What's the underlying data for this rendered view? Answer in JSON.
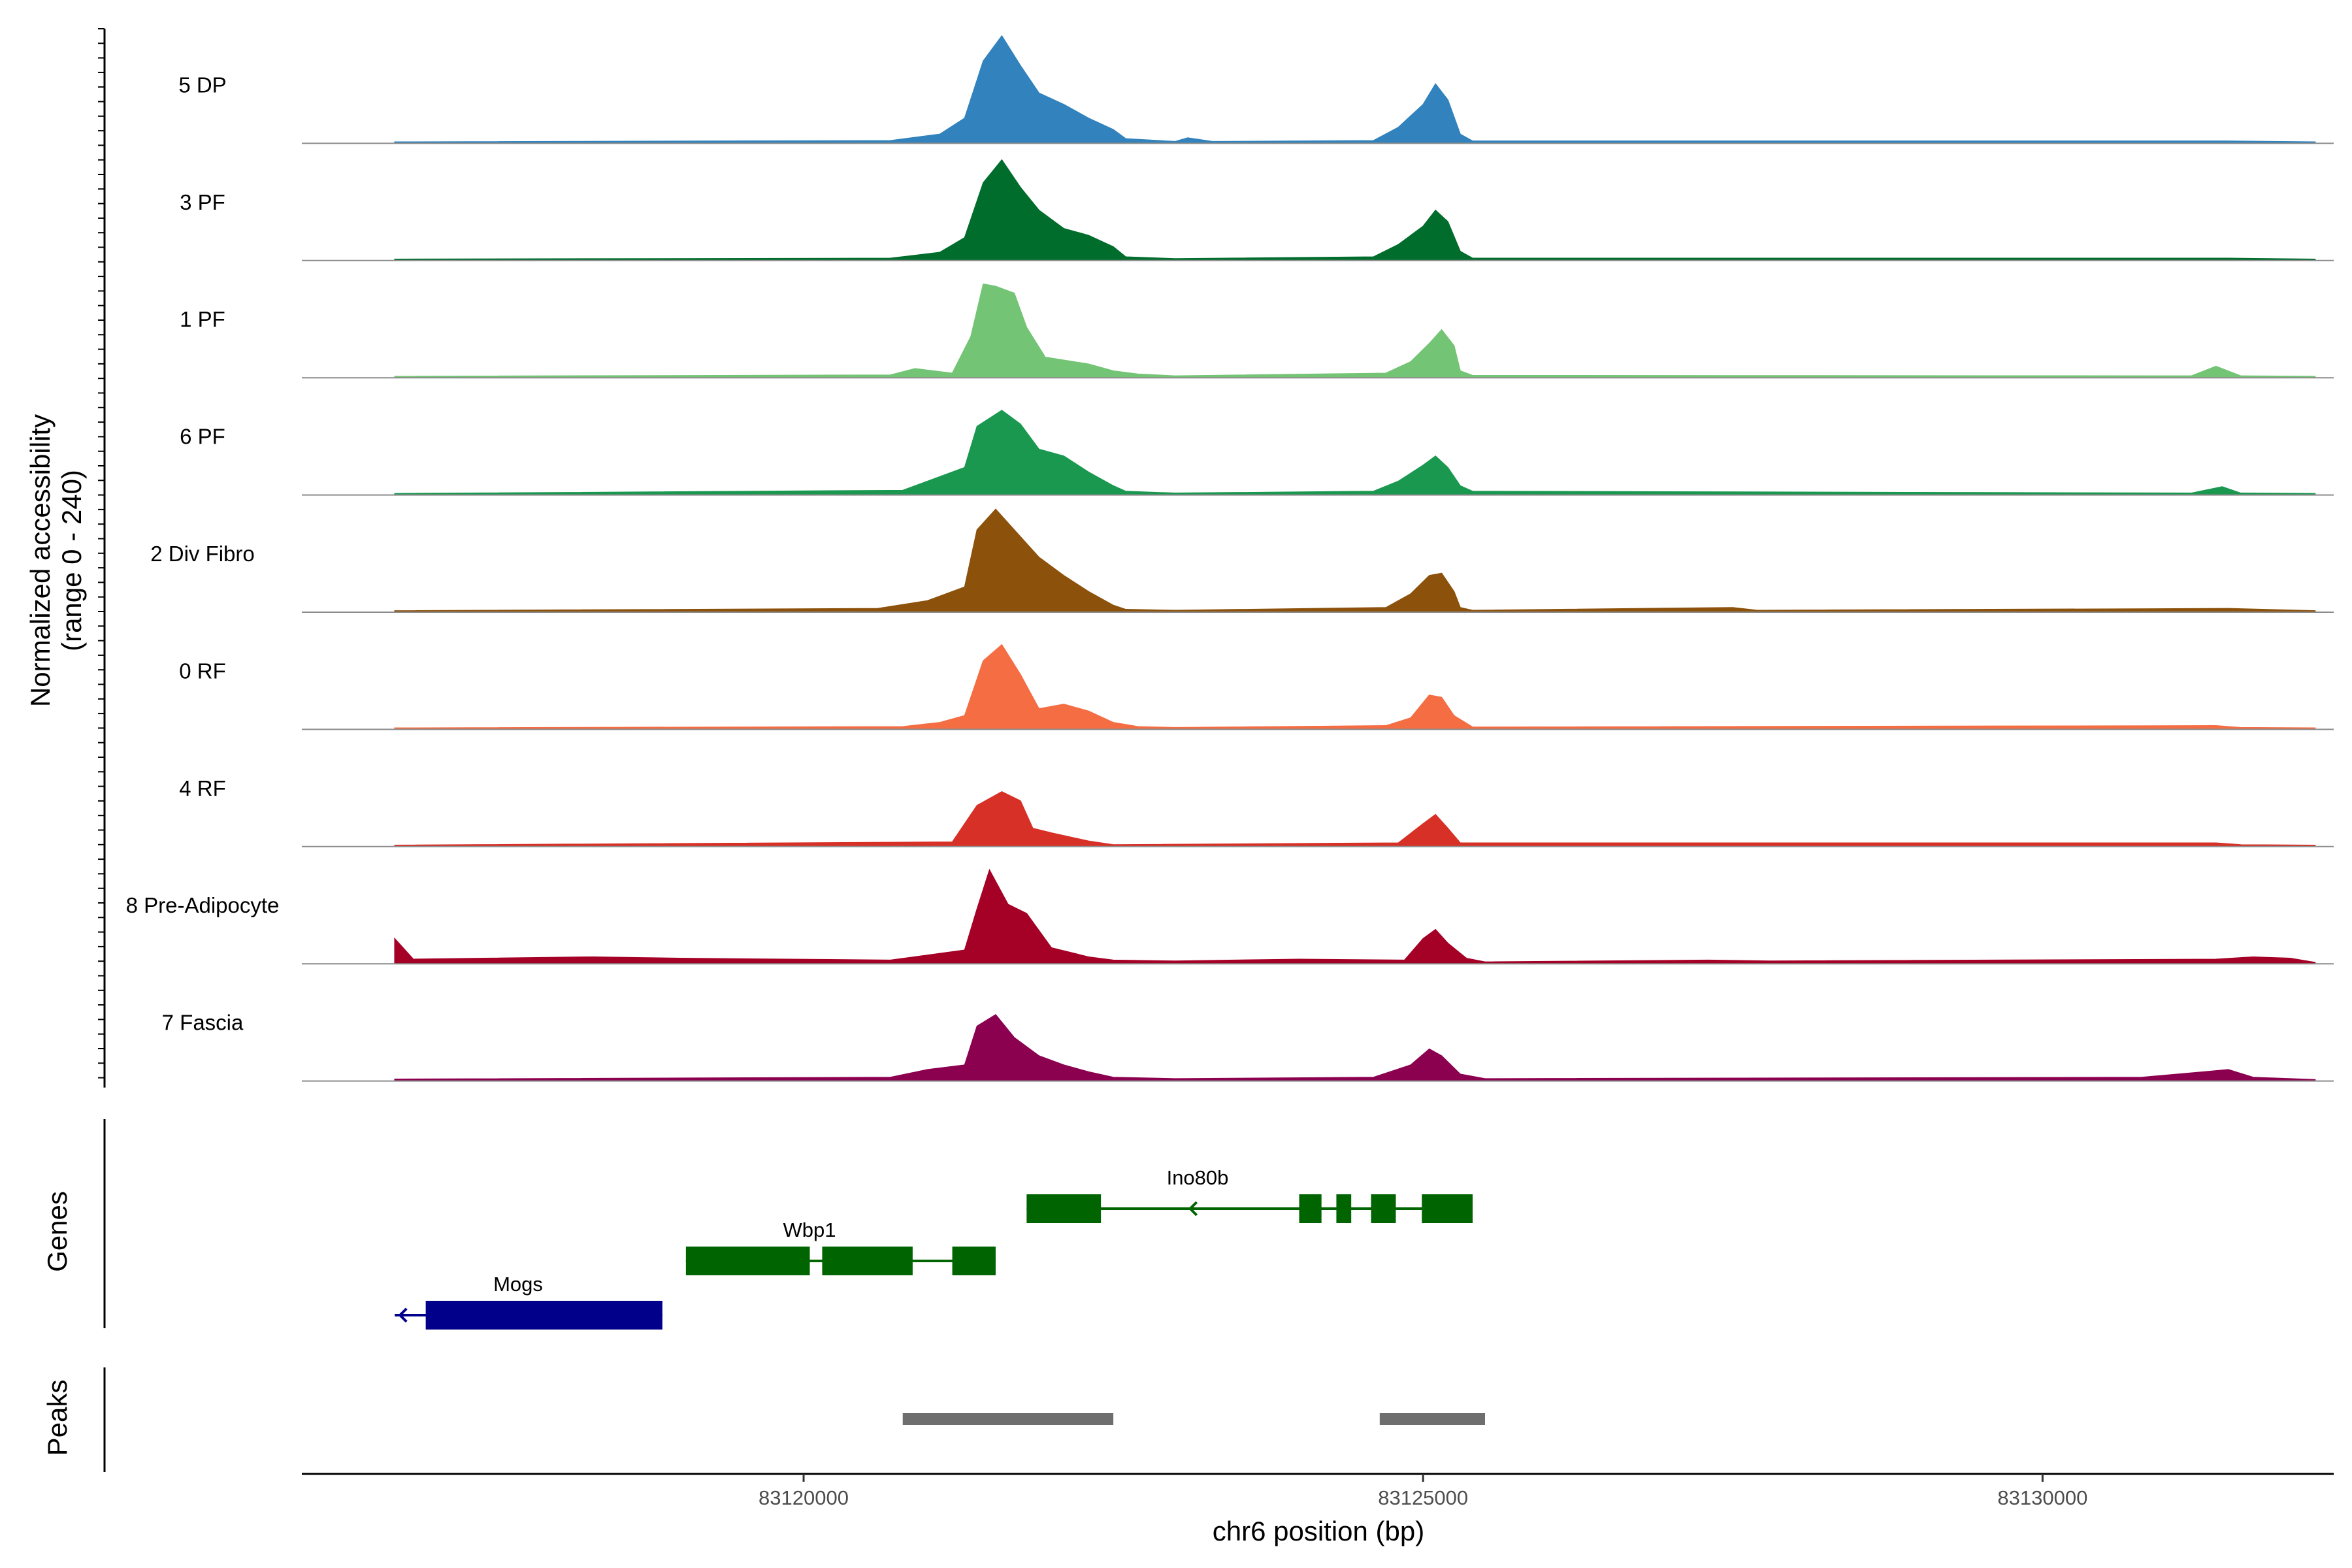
{
  "chart_data": {
    "type": "area",
    "title": "",
    "ylabel": "Normalized accessibility\n(range 0 - 240)",
    "xlabel": "chr6 position (bp)",
    "chromosome": "chr6",
    "xlim": [
      83115950,
      83132350
    ],
    "ylim": [
      0,
      240
    ],
    "x_ticks": [
      83120000,
      83125000,
      83130000
    ],
    "x_tick_labels": [
      "83120000",
      "83125000",
      "83130000"
    ],
    "tracks": [
      {
        "name": "5 DP",
        "color": "#3182bd",
        "profile": [
          [
            83116700,
            3
          ],
          [
            83120700,
            6
          ],
          [
            83121100,
            20
          ],
          [
            83121300,
            55
          ],
          [
            83121450,
            180
          ],
          [
            83121600,
            235
          ],
          [
            83121750,
            170
          ],
          [
            83121900,
            110
          ],
          [
            83122100,
            85
          ],
          [
            83122300,
            55
          ],
          [
            83122500,
            30
          ],
          [
            83122600,
            10
          ],
          [
            83123000,
            4
          ],
          [
            83123100,
            12
          ],
          [
            83123300,
            4
          ],
          [
            83124600,
            6
          ],
          [
            83124800,
            35
          ],
          [
            83125000,
            85
          ],
          [
            83125100,
            130
          ],
          [
            83125200,
            95
          ],
          [
            83125300,
            20
          ],
          [
            83125400,
            5
          ],
          [
            83131500,
            5
          ],
          [
            83132200,
            3
          ]
        ]
      },
      {
        "name": "3 PF",
        "color": "#006d2c",
        "profile": [
          [
            83116700,
            3
          ],
          [
            83120700,
            5
          ],
          [
            83121100,
            18
          ],
          [
            83121300,
            50
          ],
          [
            83121450,
            170
          ],
          [
            83121600,
            220
          ],
          [
            83121750,
            160
          ],
          [
            83121900,
            110
          ],
          [
            83122100,
            70
          ],
          [
            83122300,
            55
          ],
          [
            83122500,
            30
          ],
          [
            83122600,
            8
          ],
          [
            83123000,
            4
          ],
          [
            83124600,
            8
          ],
          [
            83124800,
            35
          ],
          [
            83125000,
            75
          ],
          [
            83125100,
            110
          ],
          [
            83125200,
            85
          ],
          [
            83125300,
            20
          ],
          [
            83125400,
            5
          ],
          [
            83131500,
            5
          ],
          [
            83132200,
            3
          ]
        ]
      },
      {
        "name": "1 PF",
        "color": "#74c476",
        "profile": [
          [
            83116700,
            3
          ],
          [
            83120700,
            6
          ],
          [
            83120900,
            20
          ],
          [
            83121200,
            10
          ],
          [
            83121350,
            90
          ],
          [
            83121450,
            205
          ],
          [
            83121550,
            200
          ],
          [
            83121700,
            185
          ],
          [
            83121800,
            110
          ],
          [
            83121950,
            45
          ],
          [
            83122300,
            30
          ],
          [
            83122500,
            15
          ],
          [
            83122700,
            8
          ],
          [
            83123000,
            4
          ],
          [
            83124700,
            10
          ],
          [
            83124900,
            35
          ],
          [
            83125050,
            75
          ],
          [
            83125150,
            105
          ],
          [
            83125250,
            70
          ],
          [
            83125300,
            15
          ],
          [
            83125400,
            5
          ],
          [
            83131200,
            4
          ],
          [
            83131400,
            25
          ],
          [
            83131600,
            4
          ],
          [
            83132200,
            3
          ]
        ]
      },
      {
        "name": "6 PF",
        "color": "#1a9850",
        "profile": [
          [
            83116700,
            3
          ],
          [
            83120800,
            10
          ],
          [
            83121000,
            30
          ],
          [
            83121300,
            60
          ],
          [
            83121400,
            150
          ],
          [
            83121600,
            185
          ],
          [
            83121750,
            155
          ],
          [
            83121900,
            100
          ],
          [
            83122100,
            85
          ],
          [
            83122300,
            50
          ],
          [
            83122500,
            20
          ],
          [
            83122600,
            8
          ],
          [
            83123000,
            4
          ],
          [
            83124600,
            8
          ],
          [
            83124800,
            30
          ],
          [
            83125000,
            65
          ],
          [
            83125100,
            85
          ],
          [
            83125200,
            60
          ],
          [
            83125300,
            20
          ],
          [
            83125400,
            8
          ],
          [
            83131200,
            4
          ],
          [
            83131450,
            18
          ],
          [
            83131600,
            4
          ],
          [
            83132200,
            3
          ]
        ]
      },
      {
        "name": "2 Div Fibro",
        "color": "#8c510a",
        "profile": [
          [
            83116700,
            3
          ],
          [
            83120600,
            8
          ],
          [
            83121000,
            25
          ],
          [
            83121300,
            55
          ],
          [
            83121400,
            180
          ],
          [
            83121550,
            225
          ],
          [
            83121700,
            180
          ],
          [
            83121900,
            120
          ],
          [
            83122100,
            80
          ],
          [
            83122300,
            45
          ],
          [
            83122500,
            15
          ],
          [
            83122600,
            6
          ],
          [
            83123000,
            4
          ],
          [
            83124700,
            10
          ],
          [
            83124900,
            40
          ],
          [
            83125050,
            80
          ],
          [
            83125150,
            85
          ],
          [
            83125250,
            45
          ],
          [
            83125300,
            10
          ],
          [
            83125400,
            4
          ],
          [
            83127500,
            10
          ],
          [
            83127700,
            4
          ],
          [
            83131500,
            8
          ],
          [
            83132200,
            3
          ]
        ]
      },
      {
        "name": "0 RF",
        "color": "#f46d43",
        "profile": [
          [
            83116700,
            3
          ],
          [
            83120800,
            6
          ],
          [
            83121100,
            15
          ],
          [
            83121300,
            30
          ],
          [
            83121450,
            150
          ],
          [
            83121600,
            185
          ],
          [
            83121750,
            120
          ],
          [
            83121900,
            45
          ],
          [
            83122100,
            55
          ],
          [
            83122300,
            40
          ],
          [
            83122500,
            15
          ],
          [
            83122700,
            6
          ],
          [
            83123000,
            4
          ],
          [
            83124700,
            8
          ],
          [
            83124900,
            25
          ],
          [
            83125050,
            75
          ],
          [
            83125150,
            70
          ],
          [
            83125250,
            30
          ],
          [
            83125400,
            5
          ],
          [
            83131400,
            8
          ],
          [
            83131600,
            4
          ],
          [
            83132200,
            3
          ]
        ]
      },
      {
        "name": "4 RF",
        "color": "#d73027",
        "profile": [
          [
            83116700,
            3
          ],
          [
            83121200,
            10
          ],
          [
            83121400,
            90
          ],
          [
            83121600,
            120
          ],
          [
            83121750,
            100
          ],
          [
            83121850,
            40
          ],
          [
            83122000,
            30
          ],
          [
            83122300,
            12
          ],
          [
            83122500,
            4
          ],
          [
            83124800,
            8
          ],
          [
            83125000,
            50
          ],
          [
            83125100,
            70
          ],
          [
            83125200,
            40
          ],
          [
            83125300,
            8
          ],
          [
            83131400,
            8
          ],
          [
            83131600,
            4
          ],
          [
            83132200,
            3
          ]
        ]
      },
      {
        "name": "8 Pre-Adipocyte",
        "color": "#a50026",
        "profile": [
          [
            83116700,
            55
          ],
          [
            83116850,
            10
          ],
          [
            83118300,
            15
          ],
          [
            83119000,
            12
          ],
          [
            83120700,
            8
          ],
          [
            83121300,
            30
          ],
          [
            83121400,
            120
          ],
          [
            83121500,
            205
          ],
          [
            83121650,
            130
          ],
          [
            83121800,
            110
          ],
          [
            83122000,
            35
          ],
          [
            83122300,
            15
          ],
          [
            83122500,
            8
          ],
          [
            83123000,
            6
          ],
          [
            83124000,
            10
          ],
          [
            83124850,
            8
          ],
          [
            83125000,
            55
          ],
          [
            83125100,
            75
          ],
          [
            83125200,
            45
          ],
          [
            83125350,
            12
          ],
          [
            83125500,
            4
          ],
          [
            83127300,
            8
          ],
          [
            83127800,
            6
          ],
          [
            83131400,
            10
          ],
          [
            83131700,
            15
          ],
          [
            83132000,
            12
          ],
          [
            83132200,
            3
          ]
        ]
      },
      {
        "name": "7 Fascia",
        "color": "#8c0050",
        "profile": [
          [
            83116700,
            4
          ],
          [
            83120700,
            8
          ],
          [
            83121000,
            25
          ],
          [
            83121300,
            35
          ],
          [
            83121400,
            120
          ],
          [
            83121550,
            145
          ],
          [
            83121700,
            95
          ],
          [
            83121900,
            55
          ],
          [
            83122100,
            35
          ],
          [
            83122300,
            20
          ],
          [
            83122500,
            8
          ],
          [
            83123000,
            5
          ],
          [
            83124600,
            8
          ],
          [
            83124900,
            35
          ],
          [
            83125050,
            70
          ],
          [
            83125150,
            55
          ],
          [
            83125300,
            15
          ],
          [
            83125500,
            5
          ],
          [
            83130800,
            8
          ],
          [
            83131300,
            20
          ],
          [
            83131500,
            25
          ],
          [
            83131700,
            8
          ],
          [
            83132200,
            3
          ]
        ]
      }
    ],
    "genes": [
      {
        "name": "Ino80b",
        "strand": "-",
        "color": "#006400",
        "start": 83121800,
        "end": 83125400,
        "exons": [
          [
            83121800,
            83122400
          ],
          [
            83124000,
            83124180
          ],
          [
            83124300,
            83124420
          ],
          [
            83124580,
            83124780
          ],
          [
            83124990,
            83125400
          ]
        ]
      },
      {
        "name": "Wbp1",
        "strand": "-",
        "color": "#006400",
        "start": 83119050,
        "end": 83121550,
        "exons": [
          [
            83119050,
            83120050
          ],
          [
            83120150,
            83120880
          ],
          [
            83121200,
            83121550
          ]
        ]
      },
      {
        "name": "Mogs",
        "strand": "-",
        "color": "#00008b",
        "start": 83116700,
        "end": 83118860,
        "exons": [
          [
            83116950,
            83118860
          ]
        ]
      }
    ],
    "peaks": [
      [
        83120800,
        83122500
      ],
      [
        83124650,
        83125500
      ]
    ]
  }
}
